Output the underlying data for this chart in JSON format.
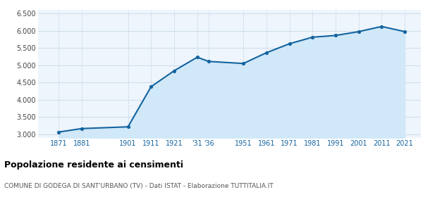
{
  "years": [
    1871,
    1881,
    1901,
    1911,
    1921,
    1931,
    1936,
    1951,
    1961,
    1971,
    1981,
    1991,
    2001,
    2011,
    2021
  ],
  "population": [
    3070,
    3170,
    3220,
    4380,
    4840,
    5230,
    5110,
    5050,
    5360,
    5620,
    5810,
    5860,
    5970,
    6120,
    5970
  ],
  "line_color": "#1464a0",
  "fill_color": "#d0e8f8",
  "marker_color": "#1464a0",
  "bg_color": "#eef5fc",
  "grid_color": "#c8d8e8",
  "ylim": [
    2900,
    6600
  ],
  "yticks": [
    3000,
    3500,
    4000,
    4500,
    5000,
    5500,
    6000,
    6500
  ],
  "title": "Popolazione residente ai censimenti",
  "subtitle": "COMUNE DI GODEGA DI SANT'URBANO (TV) - Dati ISTAT - Elaborazione TUTTITALIA.IT",
  "tick_color": "#1464a0",
  "xlim_left": 1862,
  "xlim_right": 2028
}
